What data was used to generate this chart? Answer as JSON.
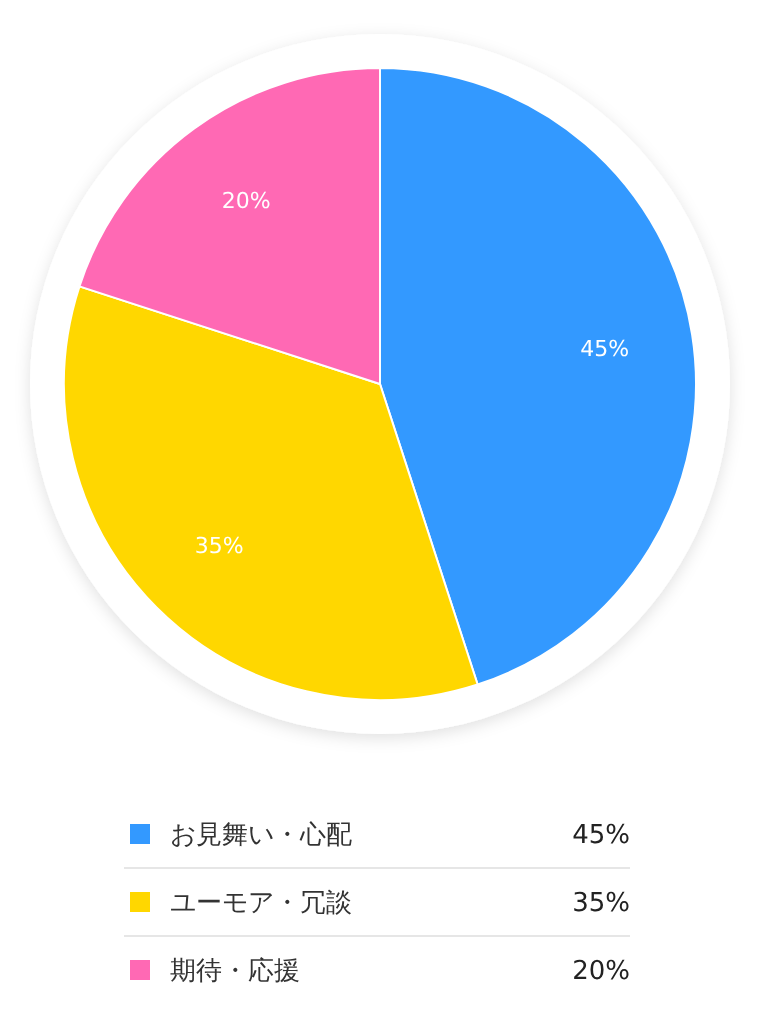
{
  "chart_data": {
    "type": "pie",
    "categories": [
      "お見舞い・心配",
      "ユーモア・冗談",
      "期待・応援"
    ],
    "values": [
      45,
      35,
      20
    ],
    "colors": [
      "#3399ff",
      "#ffd700",
      "#ff69b4"
    ],
    "value_labels": [
      "45%",
      "35%",
      "20%"
    ],
    "legend": "bottom"
  }
}
